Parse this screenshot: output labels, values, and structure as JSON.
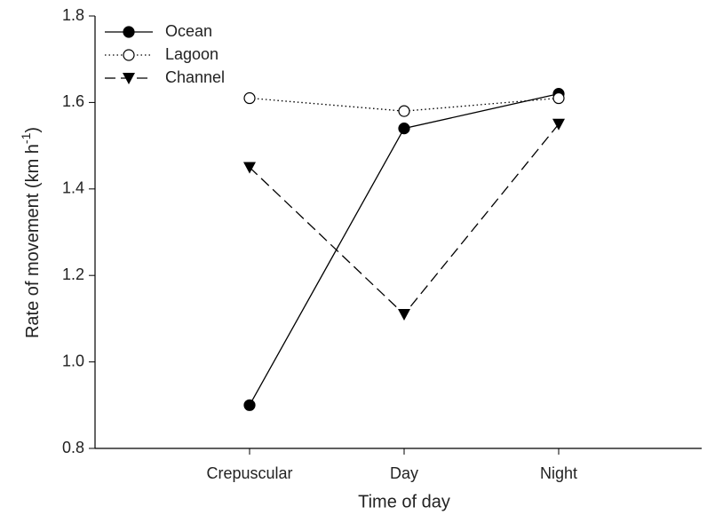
{
  "chart_data": {
    "type": "line",
    "xlabel": "Time of day",
    "ylabel": [
      "Rate of movement (km h",
      "-1",
      ")"
    ],
    "categories": [
      "Crepuscular",
      "Day",
      "Night"
    ],
    "series": [
      {
        "name": "Ocean",
        "color": "#000000",
        "line_style": "solid",
        "marker": "filled-circle",
        "values": [
          0.9,
          1.54,
          1.62
        ]
      },
      {
        "name": "Lagoon",
        "color": "#000000",
        "line_style": "dotted",
        "marker": "open-circle",
        "values": [
          1.61,
          1.58,
          1.61
        ]
      },
      {
        "name": "Channel",
        "color": "#000000",
        "line_style": "dashed",
        "marker": "down-triangle",
        "values": [
          1.45,
          1.11,
          1.55
        ]
      }
    ],
    "ylim": [
      0.8,
      1.8
    ],
    "yticks": [
      0.8,
      {
        "value": 1,
        "label": "1.0"
      },
      1.2,
      1.4,
      1.6,
      1.8
    ],
    "grid": false,
    "legend": "top-left"
  }
}
